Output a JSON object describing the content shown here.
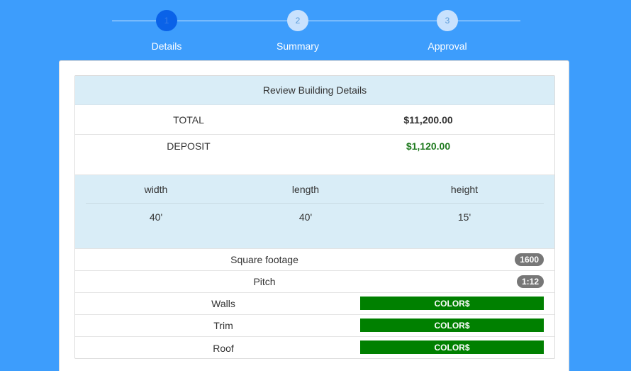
{
  "stepper": {
    "steps": [
      {
        "number": "1",
        "label": "Details",
        "active": true
      },
      {
        "number": "2",
        "label": "Summary",
        "active": false
      },
      {
        "number": "3",
        "label": "Approval",
        "active": false
      }
    ]
  },
  "review": {
    "heading": "Review Building Details",
    "total_label": "TOTAL",
    "total_value": "$11,200.00",
    "deposit_label": "DEPOSIT",
    "deposit_value": "$1,120.00",
    "dimensions": {
      "headers": [
        "width",
        "length",
        "height"
      ],
      "values": [
        "40'",
        "40'",
        "15'"
      ]
    },
    "square_footage_label": "Square footage",
    "square_footage_value": "1600",
    "pitch_label": "Pitch",
    "pitch_value": "1:12",
    "color_rows": [
      {
        "label": "Walls",
        "button": "COLOR$"
      },
      {
        "label": "Trim",
        "button": "COLOR$"
      },
      {
        "label": "Roof",
        "button": "COLOR$"
      }
    ]
  },
  "colors": {
    "background": "#3d9dfc",
    "active_step": "#0a62e8",
    "inactive_step": "#c8e1fd",
    "heading_bg": "#d9edf7",
    "deposit": "#1f7a1f",
    "color_button": "#008000",
    "badge": "#777777"
  }
}
